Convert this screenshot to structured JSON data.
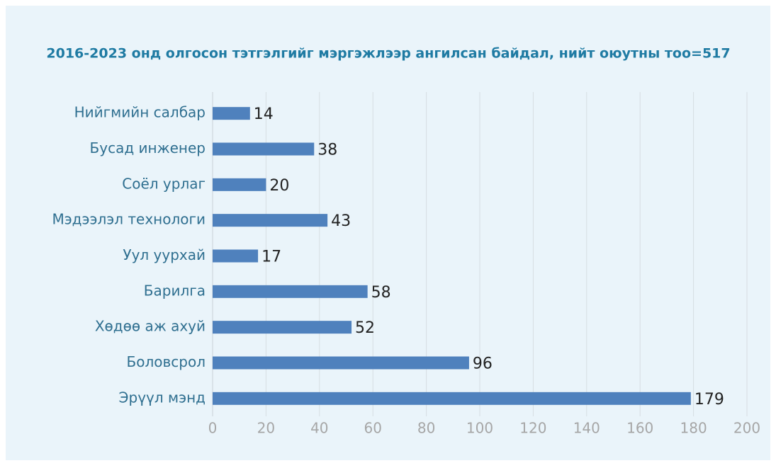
{
  "chart_data": {
    "type": "bar",
    "orientation": "horizontal",
    "title": "2016-2023 онд олгосон тэтгэлгийг мэргэжлээр ангилсан байдал, нийт оюутны тоо=517",
    "categories": [
      "Нийгмийн салбар",
      "Бусад инженер",
      "Соёл урлаг",
      "Мэдээлэл технологи",
      "Уул уурхай",
      "Барилга",
      "Хөдөө аж ахуй",
      "Боловсрол",
      "Эрүүл мэнд"
    ],
    "values": [
      14,
      38,
      20,
      43,
      17,
      58,
      52,
      96,
      179
    ],
    "color": "#4f81bd",
    "xlim": [
      0,
      200
    ],
    "xticks": [
      0,
      20,
      40,
      60,
      80,
      100,
      120,
      140,
      160,
      180,
      200
    ],
    "grid": true
  }
}
